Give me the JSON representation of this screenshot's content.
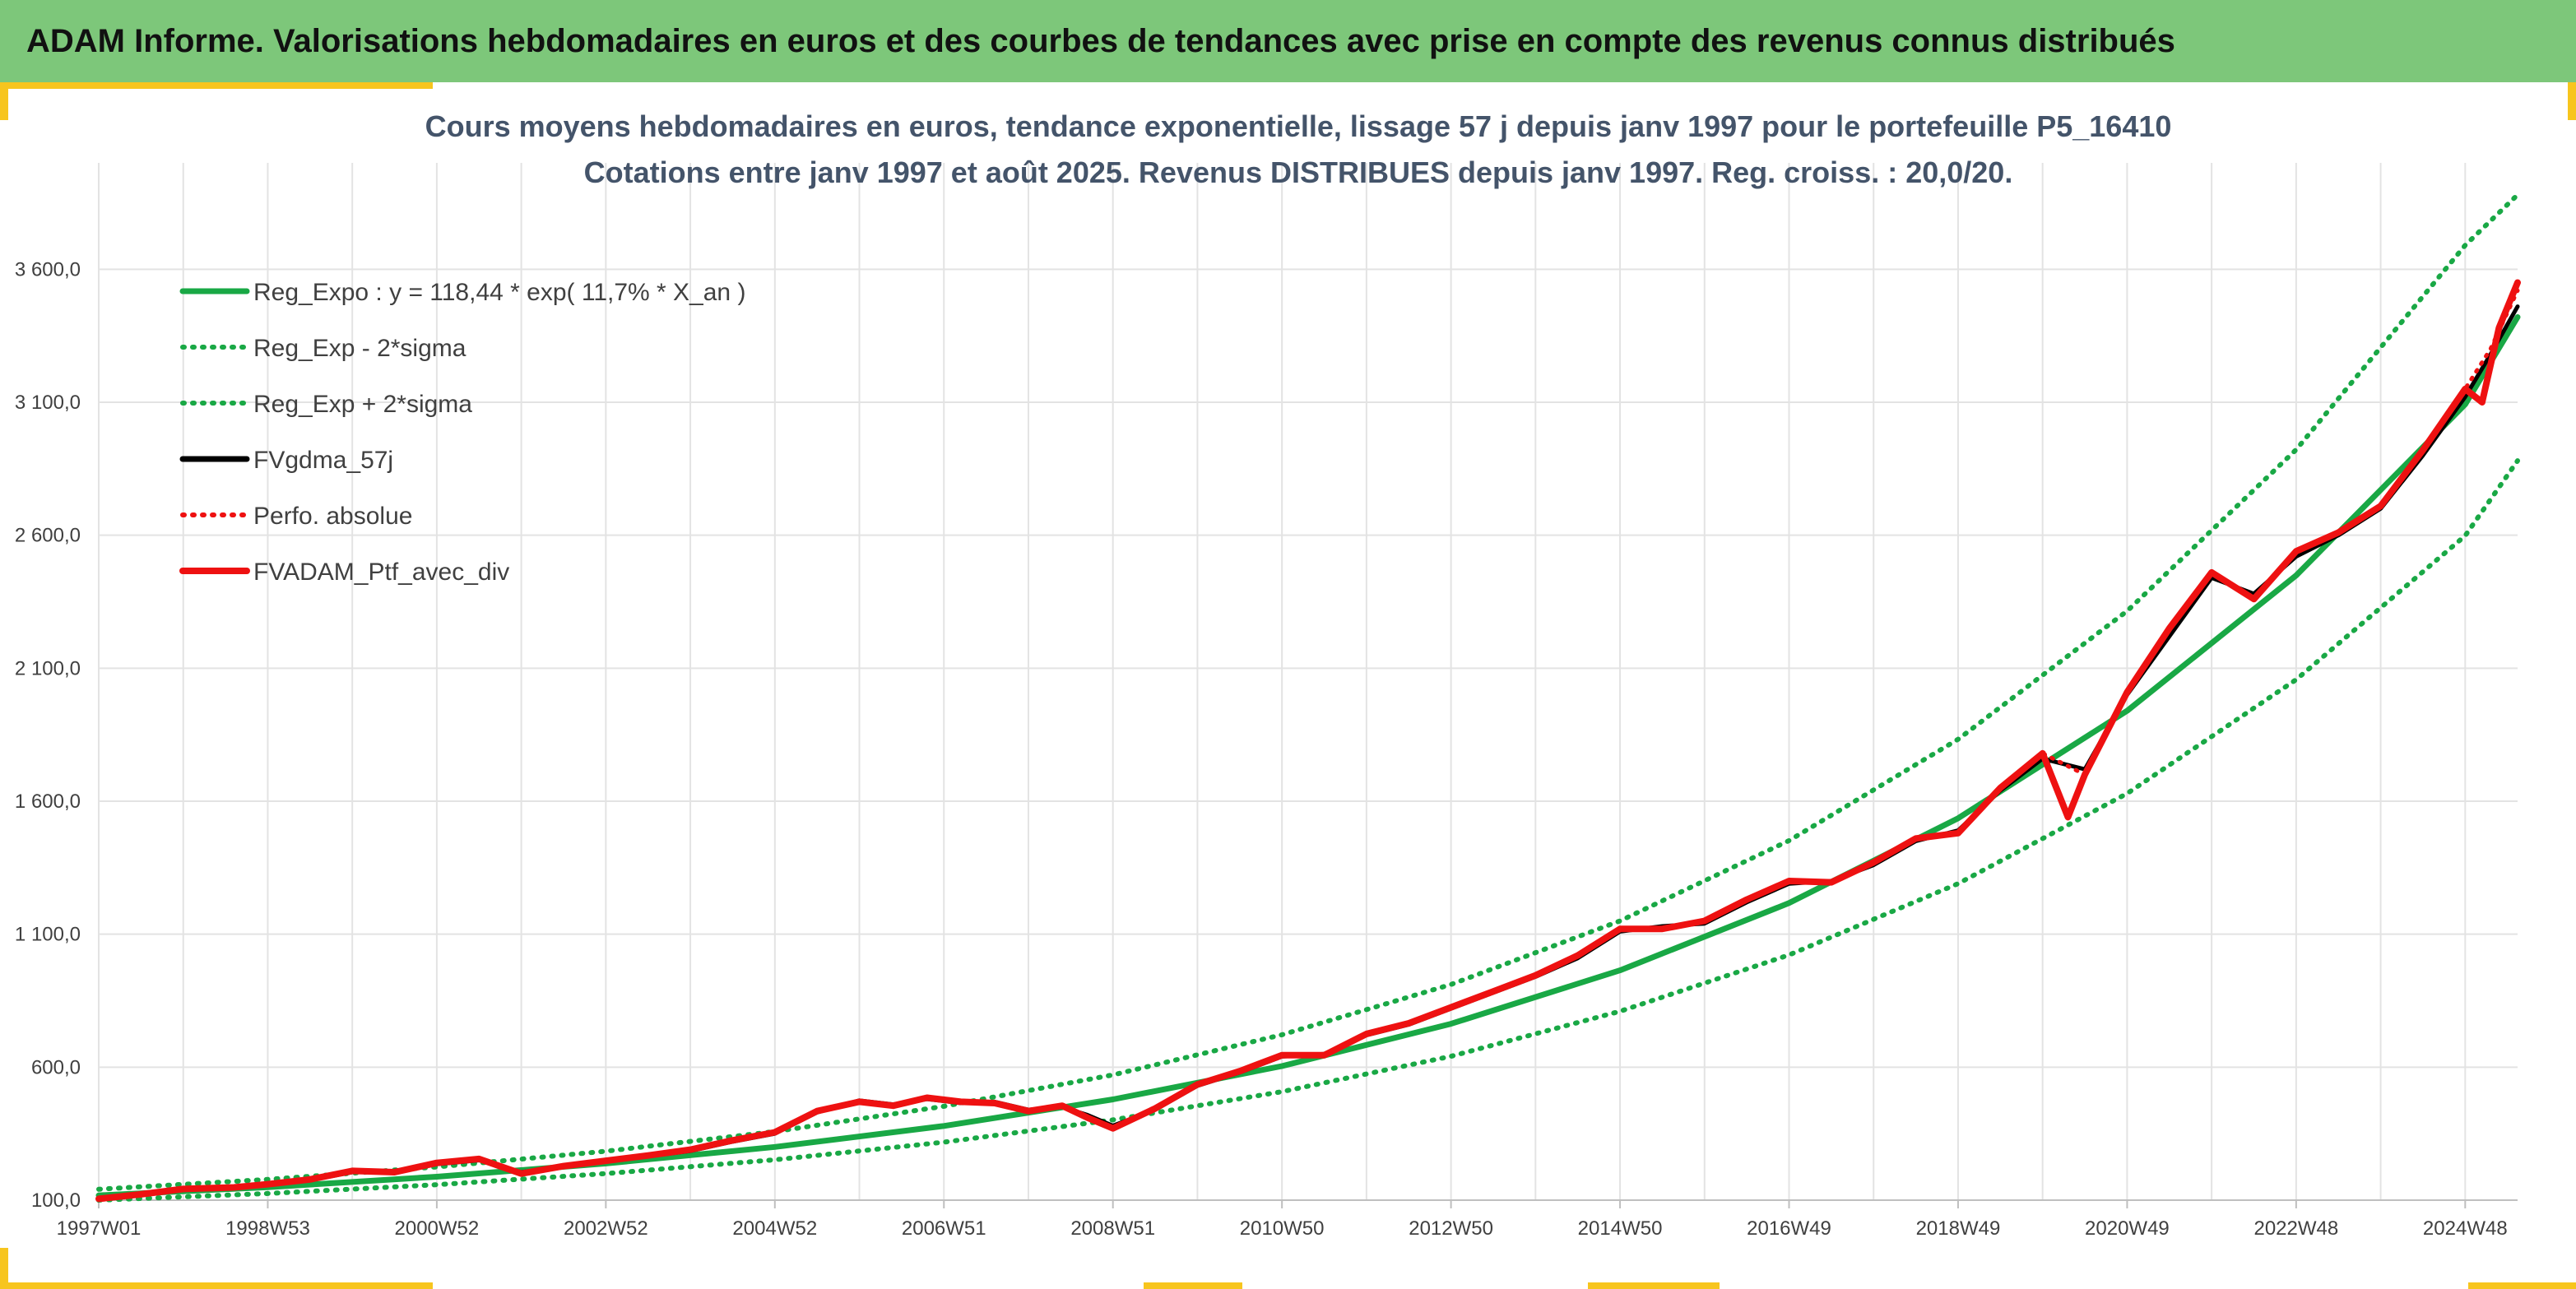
{
  "header": {
    "title": "ADAM Informe. Valorisations hebdomadaires en euros et des courbes de tendances avec prise en compte des revenus connus distribués"
  },
  "chart_data": {
    "type": "line",
    "title_line1": "Cours moyens hebdomadaires en euros, tendance exponentielle, lissage 57 j depuis janv 1997 pour le portefeuille P5_16410",
    "title_line2": "Cotations entre janv 1997 et août 2025. Revenus DISTRIBUES depuis janv 1997. Reg. croiss. : 20,0/20.",
    "xlabel": "",
    "ylabel": "",
    "x_range": [
      1997.0,
      2025.62
    ],
    "ylim": [
      100,
      4000
    ],
    "y_ticks": [
      {
        "value": 100,
        "label": "100,0"
      },
      {
        "value": 600,
        "label": "600,0"
      },
      {
        "value": 1100,
        "label": "1 100,0"
      },
      {
        "value": 1600,
        "label": "1 600,0"
      },
      {
        "value": 2100,
        "label": "2 100,0"
      },
      {
        "value": 2600,
        "label": "2 600,0"
      },
      {
        "value": 3100,
        "label": "3 100,0"
      },
      {
        "value": 3600,
        "label": "3 600,0"
      }
    ],
    "x_ticks": [
      {
        "value": 1997.0,
        "label": "1997W01"
      },
      {
        "value": 1999.0,
        "label": "1998W53"
      },
      {
        "value": 2001.0,
        "label": "2000W52"
      },
      {
        "value": 2003.0,
        "label": "2002W52"
      },
      {
        "value": 2005.0,
        "label": "2004W52"
      },
      {
        "value": 2007.0,
        "label": "2006W51"
      },
      {
        "value": 2009.0,
        "label": "2008W51"
      },
      {
        "value": 2011.0,
        "label": "2010W50"
      },
      {
        "value": 2013.0,
        "label": "2012W50"
      },
      {
        "value": 2015.0,
        "label": "2014W50"
      },
      {
        "value": 2017.0,
        "label": "2016W49"
      },
      {
        "value": 2019.0,
        "label": "2018W49"
      },
      {
        "value": 2021.0,
        "label": "2020W49"
      },
      {
        "value": 2023.0,
        "label": "2022W48"
      },
      {
        "value": 2025.0,
        "label": "2024W48"
      }
    ],
    "grid": true,
    "legend_position": "top-left",
    "legend": [
      {
        "name": "Reg_Expo : y = 118,44 * exp( 11,7% *  X_an )",
        "color": "#19a845",
        "style": "solid"
      },
      {
        "name": "Reg_Exp - 2*sigma",
        "color": "#19a845",
        "style": "dotted"
      },
      {
        "name": "Reg_Exp + 2*sigma",
        "color": "#19a845",
        "style": "dotted"
      },
      {
        "name": "FVgdma_57j",
        "color": "#000000",
        "style": "solid"
      },
      {
        "name": "Perfo. absolue",
        "color": "#ee1111",
        "style": "dotted"
      },
      {
        "name": "FVADAM_Ptf_avec_div",
        "color": "#ee1111",
        "style": "solid-thick"
      }
    ],
    "series": [
      {
        "name": "Reg_Expo : y = 118,44 * exp( 11,7% *  X_an )",
        "x": [
          1997.0,
          1999.0,
          2001.0,
          2003.0,
          2005.0,
          2007.0,
          2009.0,
          2011.0,
          2013.0,
          2015.0,
          2017.0,
          2019.0,
          2021.0,
          2023.0,
          2025.0,
          2025.62
        ],
        "values": [
          118,
          149,
          188,
          238,
          300,
          379,
          479,
          604,
          763,
          964,
          1217,
          1536,
          1940,
          2449,
          3092,
          3420
        ]
      },
      {
        "name": "Reg_Exp - 2*sigma",
        "x": [
          1997.0,
          1999.0,
          2001.0,
          2003.0,
          2005.0,
          2007.0,
          2009.0,
          2011.0,
          2013.0,
          2015.0,
          2017.0,
          2019.0,
          2021.0,
          2023.0,
          2025.0,
          2025.62
        ],
        "values": [
          100,
          125,
          158,
          200,
          252,
          318,
          402,
          508,
          641,
          810,
          1022,
          1290,
          1629,
          2057,
          2598,
          2880
        ]
      },
      {
        "name": "Reg_Exp + 2*sigma",
        "x": [
          1997.0,
          1999.0,
          2001.0,
          2003.0,
          2005.0,
          2007.0,
          2009.0,
          2011.0,
          2013.0,
          2015.0,
          2017.0,
          2019.0,
          2021.0,
          2023.0,
          2025.0,
          2025.62
        ],
        "values": [
          141,
          178,
          225,
          284,
          358,
          453,
          571,
          722,
          911,
          1150,
          1452,
          1833,
          2315,
          2922,
          3690,
          3880
        ]
      },
      {
        "name": "FVgdma_57j",
        "x": [
          1997.0,
          1997.5,
          1998.0,
          1998.6,
          1999.0,
          1999.5,
          2000.0,
          2000.5,
          2001.0,
          2001.5,
          2002.0,
          2002.5,
          2003.0,
          2003.5,
          2004.0,
          2004.5,
          2005.0,
          2005.5,
          2006.0,
          2006.4,
          2006.8,
          2007.2,
          2007.6,
          2008.0,
          2008.4,
          2008.7,
          2009.0,
          2009.5,
          2010.0,
          2010.5,
          2011.0,
          2011.5,
          2012.0,
          2012.5,
          2013.0,
          2013.5,
          2014.0,
          2014.5,
          2015.0,
          2015.5,
          2016.0,
          2016.5,
          2017.0,
          2017.5,
          2018.0,
          2018.5,
          2019.0,
          2019.5,
          2020.0,
          2020.5,
          2021.0,
          2021.5,
          2022.0,
          2022.5,
          2023.0,
          2023.5,
          2024.0,
          2024.5,
          2025.0,
          2025.3,
          2025.62
        ],
        "values": [
          105,
          120,
          140,
          150,
          158,
          175,
          205,
          210,
          235,
          250,
          205,
          225,
          250,
          265,
          285,
          320,
          350,
          430,
          475,
          460,
          480,
          465,
          470,
          440,
          450,
          420,
          380,
          440,
          530,
          580,
          640,
          650,
          720,
          760,
          820,
          880,
          940,
          1010,
          1110,
          1130,
          1140,
          1220,
          1290,
          1300,
          1360,
          1450,
          1490,
          1640,
          1760,
          1720,
          2000,
          2220,
          2440,
          2380,
          2520,
          2600,
          2700,
          2900,
          3120,
          3280,
          3460
        ]
      },
      {
        "name": "Perfo. absolue",
        "x": [
          1997.0,
          1997.5,
          1998.0,
          1998.6,
          1999.0,
          1999.5,
          2000.0,
          2000.5,
          2001.0,
          2001.5,
          2002.0,
          2002.5,
          2003.0,
          2003.5,
          2004.0,
          2004.5,
          2005.0,
          2005.5,
          2006.0,
          2006.4,
          2006.8,
          2007.2,
          2007.6,
          2008.0,
          2008.4,
          2008.7,
          2009.0,
          2009.5,
          2010.0,
          2010.5,
          2011.0,
          2011.5,
          2012.0,
          2012.5,
          2013.0,
          2013.5,
          2014.0,
          2014.5,
          2015.0,
          2015.5,
          2016.0,
          2016.5,
          2017.0,
          2017.5,
          2018.0,
          2018.5,
          2019.0,
          2019.5,
          2020.0,
          2020.5,
          2021.0,
          2021.5,
          2022.0,
          2022.5,
          2023.0,
          2023.5,
          2024.0,
          2024.5,
          2025.0,
          2025.3,
          2025.62
        ],
        "values": [
          105,
          122,
          142,
          148,
          160,
          178,
          210,
          205,
          240,
          255,
          200,
          228,
          248,
          268,
          290,
          325,
          355,
          435,
          470,
          455,
          485,
          470,
          465,
          435,
          455,
          410,
          370,
          445,
          535,
          585,
          645,
          645,
          725,
          765,
          825,
          885,
          945,
          1020,
          1120,
          1120,
          1150,
          1230,
          1300,
          1295,
          1370,
          1460,
          1480,
          1650,
          1780,
          1700,
          2010,
          2250,
          2460,
          2360,
          2540,
          2610,
          2710,
          2920,
          3150,
          3300,
          3520
        ]
      },
      {
        "name": "FVADAM_Ptf_avec_div",
        "x": [
          1997.0,
          1997.5,
          1998.0,
          1998.6,
          1999.0,
          1999.5,
          2000.0,
          2000.5,
          2001.0,
          2001.5,
          2002.0,
          2002.5,
          2003.0,
          2003.5,
          2004.0,
          2004.5,
          2005.0,
          2005.5,
          2006.0,
          2006.4,
          2006.8,
          2007.2,
          2007.6,
          2008.0,
          2008.4,
          2008.7,
          2009.0,
          2009.5,
          2010.0,
          2010.5,
          2011.0,
          2011.5,
          2012.0,
          2012.5,
          2013.0,
          2013.5,
          2014.0,
          2014.5,
          2015.0,
          2015.5,
          2016.0,
          2016.5,
          2017.0,
          2017.5,
          2018.0,
          2018.5,
          2019.0,
          2019.5,
          2020.0,
          2020.3,
          2020.5,
          2021.0,
          2021.5,
          2022.0,
          2022.5,
          2023.0,
          2023.5,
          2024.0,
          2024.5,
          2025.0,
          2025.2,
          2025.4,
          2025.62
        ],
        "values": [
          105,
          122,
          142,
          148,
          160,
          178,
          210,
          205,
          240,
          255,
          200,
          228,
          248,
          268,
          290,
          325,
          355,
          435,
          470,
          455,
          485,
          470,
          465,
          435,
          455,
          410,
          370,
          445,
          535,
          585,
          645,
          645,
          725,
          765,
          825,
          885,
          945,
          1020,
          1120,
          1120,
          1150,
          1230,
          1300,
          1295,
          1370,
          1460,
          1480,
          1650,
          1780,
          1540,
          1700,
          2010,
          2250,
          2460,
          2360,
          2540,
          2610,
          2710,
          2920,
          3150,
          3100,
          3380,
          3550
        ]
      }
    ]
  }
}
